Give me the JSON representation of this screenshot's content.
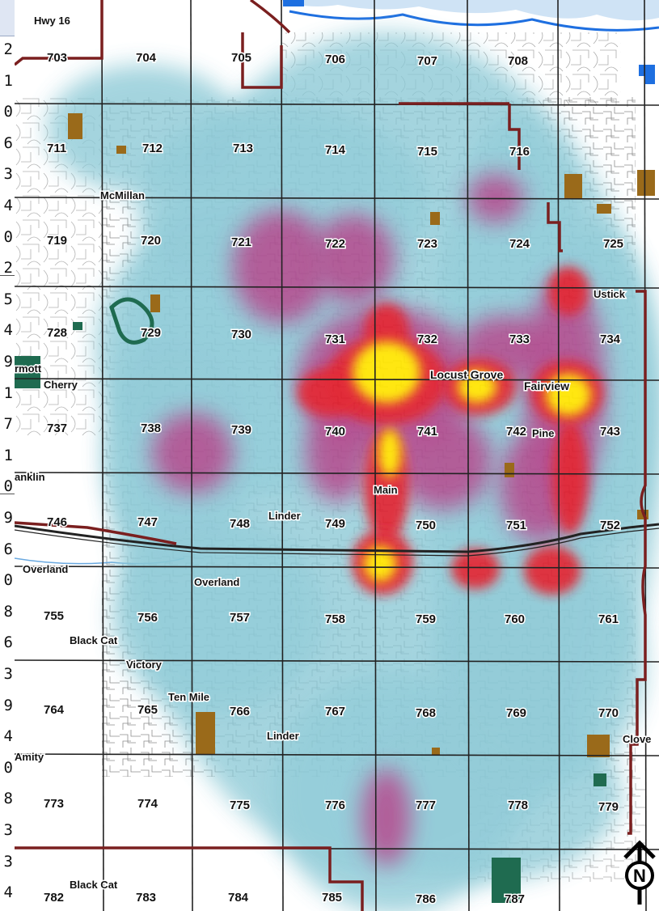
{
  "colors": {
    "boundary": "#7a1f1f",
    "road": "#222222",
    "street": "#555555",
    "water": "#1e6fe0",
    "park": "#1f6b50",
    "facility": "#9a6a1a",
    "heat_low": "#8cc9d6",
    "heat_mid": "#b0448a",
    "heat_high": "#e01c2a",
    "heat_peak": "#ffe600"
  },
  "left_column": {
    "values": [
      "2",
      "1",
      "0",
      "6",
      "3",
      "4",
      "0",
      "2",
      "5",
      "4",
      "9",
      "1",
      "7",
      "1",
      "0",
      "9",
      "6",
      "0",
      "8",
      "6",
      "3",
      "9",
      "4",
      "0",
      "8",
      "3",
      "3",
      "4"
    ]
  },
  "map": {
    "section_labels": [
      "703",
      "704",
      "705",
      "706",
      "707",
      "708",
      "711",
      "712",
      "713",
      "714",
      "715",
      "716",
      "719",
      "720",
      "721",
      "722",
      "723",
      "724",
      "725",
      "728",
      "729",
      "730",
      "731",
      "732",
      "733",
      "734",
      "737",
      "738",
      "739",
      "740",
      "741",
      "742",
      "743",
      "746",
      "747",
      "748",
      "749",
      "750",
      "751",
      "752",
      "755",
      "756",
      "757",
      "758",
      "759",
      "760",
      "761",
      "764",
      "765",
      "766",
      "767",
      "768",
      "769",
      "770",
      "773",
      "774",
      "775",
      "776",
      "777",
      "778",
      "779",
      "782",
      "783",
      "784",
      "785",
      "786",
      "787"
    ],
    "road_labels": [
      "Hwy 16",
      "McMillan",
      "rmott",
      "Cherry",
      "anklin",
      "Linder",
      "Overland",
      "Overland",
      "Black Cat",
      "Victory",
      "Ten Mile",
      "Linder",
      "Amity",
      "Black Cat",
      "Main",
      "Pine",
      "Ustick",
      "Clove"
    ],
    "place_labels": [
      "Locust Grove",
      "Fairview"
    ],
    "north_arrow": "N"
  }
}
